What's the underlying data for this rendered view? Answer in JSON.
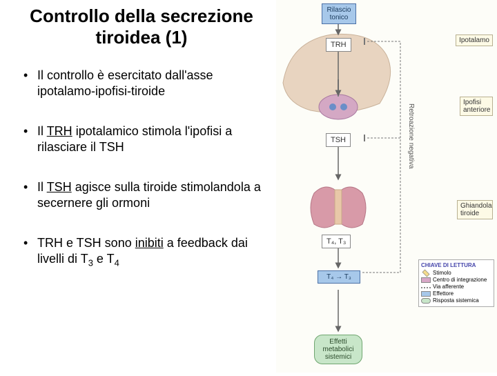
{
  "title": "Controllo della secrezione tiroidea (1)",
  "bullets": [
    {
      "html": "Il controllo è esercitato dall'asse ipotalamo-ipofisi-tiroide"
    },
    {
      "html": "Il <u>TRH</u> ipotalamico stimola l'ipofisi a rilasciare il TSH"
    },
    {
      "html": "Il <u>TSH</u> agisce sulla tiroide stimolandola a secernere gli ormoni"
    },
    {
      "html": "TRH e TSH sono <u>inibiti</u>  a feedback dai livelli di T<sub class=\"sub\">3</sub> e T<sub class=\"sub\">4</sub>"
    }
  ],
  "diagram": {
    "topBox": "Rilascio tonico",
    "trh": "TRH",
    "tsh": "TSH",
    "t4t3": "T₄, T₃",
    "t4_arrow_t3": "T₄ → T₃",
    "effect": "Effetti metabolici sistemici",
    "labels": {
      "ipotalamo": "Ipotalamo",
      "ipofisi": "Ipofisi anteriore",
      "ghiandola": "Ghiandola tiroide"
    },
    "feedback": "Retroazione negativa",
    "legend": {
      "title": "CHIAVE DI LETTURA",
      "items": [
        {
          "label": "Stimolo",
          "color": "#f4dc8c",
          "shape": "diamond"
        },
        {
          "label": "Centro di integrazione",
          "color": "#d8a8c8",
          "shape": "hex"
        },
        {
          "label": "Via afferente",
          "color": "#888",
          "shape": "line"
        },
        {
          "label": "Effettore",
          "color": "#a7c8ea",
          "shape": "rect"
        },
        {
          "label": "Risposta sistemica",
          "color": "#c8e6c9",
          "shape": "oval"
        }
      ]
    },
    "colors": {
      "brain": "#e8d4c0",
      "brainDark": "#c9b29a",
      "pituitary": "#d4a8c4",
      "thyroid": "#d89aa8",
      "arrow": "#666"
    }
  }
}
